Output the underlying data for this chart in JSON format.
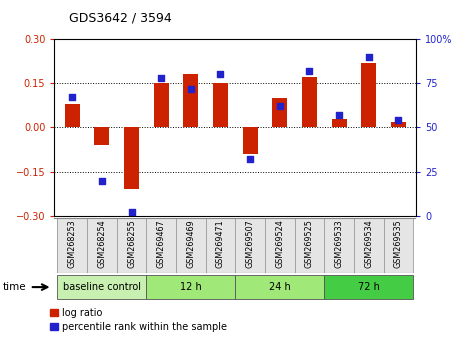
{
  "title": "GDS3642 / 3594",
  "samples": [
    "GSM268253",
    "GSM268254",
    "GSM268255",
    "GSM269467",
    "GSM269469",
    "GSM269471",
    "GSM269507",
    "GSM269524",
    "GSM269525",
    "GSM269533",
    "GSM269534",
    "GSM269535"
  ],
  "log_ratio": [
    0.08,
    -0.06,
    -0.21,
    0.15,
    0.18,
    0.15,
    -0.09,
    0.1,
    0.17,
    0.03,
    0.22,
    0.02
  ],
  "percentile_rank": [
    67,
    20,
    2,
    78,
    72,
    80,
    32,
    62,
    82,
    57,
    90,
    54
  ],
  "groups": [
    {
      "label": "baseline control",
      "start": 0,
      "end": 3,
      "color": "#c8f0b0"
    },
    {
      "label": "12 h",
      "start": 3,
      "end": 6,
      "color": "#90e870"
    },
    {
      "label": "24 h",
      "start": 6,
      "end": 9,
      "color": "#90e870"
    },
    {
      "label": "72 h",
      "start": 9,
      "end": 12,
      "color": "#44cc44"
    }
  ],
  "bar_color": "#cc2200",
  "dot_color": "#2222cc",
  "ylim_left": [
    -0.3,
    0.3
  ],
  "ylim_right": [
    0,
    100
  ],
  "yticks_left": [
    -0.3,
    -0.15,
    0.0,
    0.15,
    0.3
  ],
  "yticks_right": [
    0,
    25,
    50,
    75,
    100
  ],
  "hlines": [
    -0.15,
    0.0,
    0.15
  ],
  "bar_width": 0.5,
  "group_colors": [
    "#c8f0b0",
    "#a0e878",
    "#a0e878",
    "#44cc44"
  ],
  "label_bg": "#d8d8d8"
}
